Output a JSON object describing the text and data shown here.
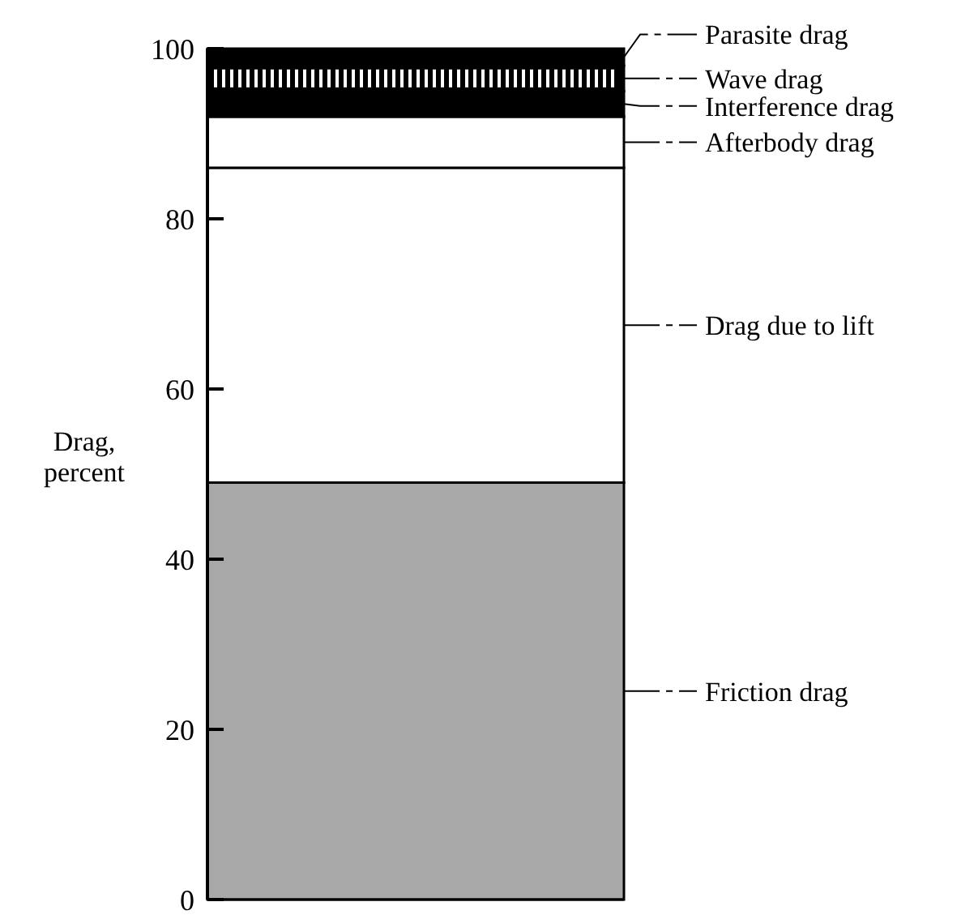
{
  "chart_data": {
    "type": "bar",
    "ylabel": "Drag, percent",
    "categories": [
      null
    ],
    "stacked": true,
    "legend": "right",
    "ylim": [
      0,
      100
    ],
    "yticks": [
      0,
      20,
      40,
      60,
      80,
      100
    ],
    "series": [
      {
        "name": "Friction drag",
        "color": "#a8a8a8",
        "values": [
          49
        ]
      },
      {
        "name": "Drag due to lift",
        "color": "#ffffff",
        "values": [
          37
        ]
      },
      {
        "name": "Afterbody drag",
        "color": "#ffffff",
        "values": [
          6
        ]
      },
      {
        "name": "Interference drag",
        "color": "#000000",
        "values": [
          3
        ]
      },
      {
        "name": "Wave drag",
        "color": "#000000",
        "values": [
          3
        ]
      },
      {
        "name": "Parasite drag",
        "color": "#000000",
        "values": [
          2
        ]
      }
    ]
  }
}
